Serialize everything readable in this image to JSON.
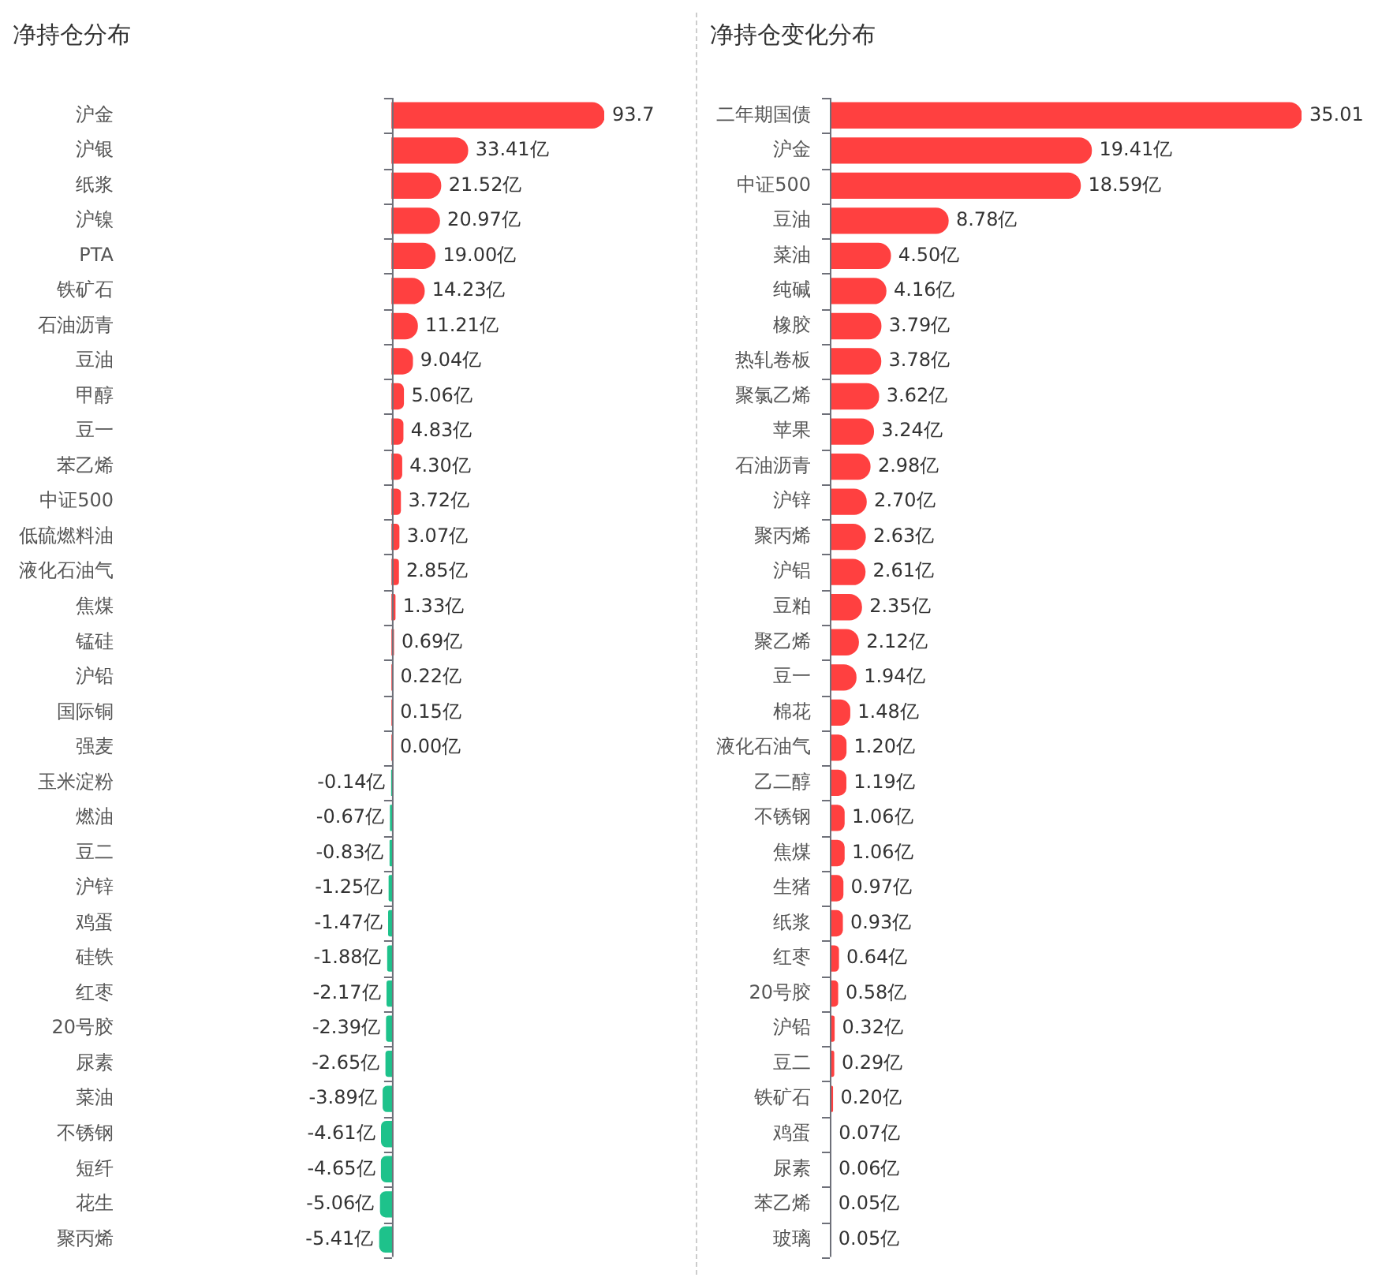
{
  "chart_data": [
    {
      "type": "bar",
      "orientation": "horizontal",
      "title": "净持仓分布",
      "categories": [
        "沪金",
        "沪银",
        "纸浆",
        "沪镍",
        "PTA",
        "铁矿石",
        "石油沥青",
        "豆油",
        "甲醇",
        "豆一",
        "苯乙烯",
        "中证500",
        "低硫燃料油",
        "液化石油气",
        "焦煤",
        "锰硅",
        "沪铅",
        "国际铜",
        "强麦",
        "玉米淀粉",
        "燃油",
        "豆二",
        "沪锌",
        "鸡蛋",
        "硅铁",
        "红枣",
        "20号胶",
        "尿素",
        "菜油",
        "不锈钢",
        "短纤",
        "花生",
        "聚丙烯"
      ],
      "values": [
        93.7,
        33.41,
        21.52,
        20.97,
        19.0,
        14.23,
        11.21,
        9.04,
        5.06,
        4.83,
        4.3,
        3.72,
        3.07,
        2.85,
        1.33,
        0.69,
        0.22,
        0.15,
        0.0,
        -0.14,
        -0.67,
        -0.83,
        -1.25,
        -1.47,
        -1.88,
        -2.17,
        -2.39,
        -2.65,
        -3.89,
        -4.61,
        -4.65,
        -5.06,
        -5.41
      ],
      "value_labels": [
        "93.7",
        "33.41亿",
        "21.52亿",
        "20.97亿",
        "19.00亿",
        "14.23亿",
        "11.21亿",
        "9.04亿",
        "5.06亿",
        "4.83亿",
        "4.30亿",
        "3.72亿",
        "3.07亿",
        "2.85亿",
        "1.33亿",
        "0.69亿",
        "0.22亿",
        "0.15亿",
        "0.00亿",
        "-0.14亿",
        "-0.67亿",
        "-0.83亿",
        "-1.25亿",
        "-1.47亿",
        "-1.88亿",
        "-2.17亿",
        "-2.39亿",
        "-2.65亿",
        "-3.89亿",
        "-4.61亿",
        "-4.65亿",
        "-5.06亿",
        "-5.41亿"
      ],
      "colors": [
        "#ff4040",
        "#ff4040",
        "#ff4040",
        "#ff4040",
        "#ff4040",
        "#ff4040",
        "#ff4040",
        "#ff4040",
        "#ff4040",
        "#ff4040",
        "#ff4040",
        "#ff4040",
        "#ff4040",
        "#ff4040",
        "#ff4040",
        "#ff4040",
        "#ff4040",
        "#ff4040",
        "#ff4040",
        "#1ec28b",
        "#1ec28b",
        "#1ec28b",
        "#1ec28b",
        "#1ec28b",
        "#1ec28b",
        "#1ec28b",
        "#1ec28b",
        "#1ec28b",
        "#1ec28b",
        "#1ec28b",
        "#1ec28b",
        "#1ec28b",
        "#1ec28b"
      ],
      "tick_labels": "y",
      "legend": false,
      "grid": false
    },
    {
      "type": "bar",
      "orientation": "horizontal",
      "title": "净持仓变化分布",
      "categories": [
        "二年期国债",
        "沪金",
        "中证500",
        "豆油",
        "菜油",
        "纯碱",
        "橡胶",
        "热轧卷板",
        "聚氯乙烯",
        "苹果",
        "石油沥青",
        "沪锌",
        "聚丙烯",
        "沪铝",
        "豆粕",
        "聚乙烯",
        "豆一",
        "棉花",
        "液化石油气",
        "乙二醇",
        "不锈钢",
        "焦煤",
        "生猪",
        "纸浆",
        "红枣",
        "20号胶",
        "沪铅",
        "豆二",
        "铁矿石",
        "鸡蛋",
        "尿素",
        "苯乙烯",
        "玻璃"
      ],
      "values": [
        35.01,
        19.41,
        18.59,
        8.78,
        4.5,
        4.16,
        3.79,
        3.78,
        3.62,
        3.24,
        2.98,
        2.7,
        2.63,
        2.61,
        2.35,
        2.12,
        1.94,
        1.48,
        1.2,
        1.19,
        1.06,
        1.06,
        0.97,
        0.93,
        0.64,
        0.58,
        0.32,
        0.29,
        0.2,
        0.07,
        0.06,
        0.05,
        0.05
      ],
      "value_labels": [
        "35.01",
        "19.41亿",
        "18.59亿",
        "8.78亿",
        "4.50亿",
        "4.16亿",
        "3.79亿",
        "3.78亿",
        "3.62亿",
        "3.24亿",
        "2.98亿",
        "2.70亿",
        "2.63亿",
        "2.61亿",
        "2.35亿",
        "2.12亿",
        "1.94亿",
        "1.48亿",
        "1.20亿",
        "1.19亿",
        "1.06亿",
        "1.06亿",
        "0.97亿",
        "0.93亿",
        "0.64亿",
        "0.58亿",
        "0.32亿",
        "0.29亿",
        "0.20亿",
        "0.07亿",
        "0.06亿",
        "0.05亿",
        "0.05亿"
      ],
      "color": "#ff4040",
      "tick_labels": "y",
      "legend": false,
      "grid": false
    }
  ]
}
